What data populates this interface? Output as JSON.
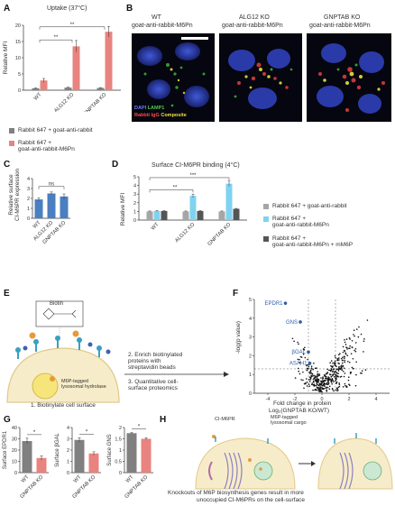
{
  "panels": {
    "A": {
      "label": "A",
      "title": "Uptake (37°C)",
      "ylabel": "Relative MFI",
      "legend": [
        {
          "label": "Rabbit 647 + goat-anti-rabbit",
          "color": "#808080"
        },
        {
          "label": "Rabbit 647 +\ngoat-anti-rabbit-M6Pn",
          "color": "#e8837f"
        }
      ],
      "sig": [
        "**",
        "**"
      ]
    },
    "B": {
      "label": "B",
      "headers": [
        {
          "line1": "WT",
          "line2": "goat-anti-rabbit-M6Pn"
        },
        {
          "line1": "ALG12 KO",
          "line2": "goat-anti-rabbit-M6Pn"
        },
        {
          "line1": "GNPTAB KO",
          "line2": "goat-anti-rabbit-M6Pn"
        }
      ],
      "legend_line1": [
        {
          "text": "DAPI",
          "color": "#6f7cff"
        },
        {
          "text": "LAMP1",
          "color": "#4ccc4c"
        }
      ],
      "legend_line2": [
        {
          "text": "Rabbit IgG",
          "color": "#ff4a4a"
        },
        {
          "text": "Composite",
          "color": "#f0e040"
        }
      ]
    },
    "C": {
      "label": "C",
      "ylabel": "Relative surface\nCI-M6PR expression",
      "sig": "ns"
    },
    "D": {
      "label": "D",
      "title": "Surface CI-M6PR binding (4°C)",
      "ylabel": "Relative MFI",
      "legend": [
        {
          "label": "Rabbit 647 + goat-anti-rabbit",
          "color": "#a6a6a6"
        },
        {
          "label": "Rabbit 647 +\ngoat-anti-rabbit-M6Pn",
          "color": "#7fd3f0"
        },
        {
          "label": "Rabbit 647 +\ngoat-anti-rabbit-M6Pn + mM6P",
          "color": "#555555"
        }
      ],
      "sig": [
        "**",
        "***"
      ]
    },
    "E": {
      "label": "E",
      "biotin_label": "Biotin",
      "cargo_label": "M6P-tagged\nlysosomal hydrolase",
      "step1": "1. Biotinylate cell surface",
      "step2": "2. Enrich biotinylated\nproteins with\nstreptavidin beads",
      "step3": "3. Quantitative cell-\nsurface proteomics"
    },
    "F": {
      "label": "F",
      "ylabel": "-log(p value)",
      "xlabel_line1": "Fold change in protein",
      "xlabel_line2": "Log₂(GNPTAB KO/WT)",
      "highlights": [
        "EPDR1",
        "GNS",
        "βGAL",
        "ASAH1"
      ]
    },
    "G": {
      "label": "G",
      "sig": [
        "*",
        "*",
        "*"
      ]
    },
    "H": {
      "label": "H",
      "receptor_label": "CI-M6PR",
      "cargo_label": "M6P-tagged\nlysosomal cargo",
      "caption_line1": "Knockouts of M6P biosynthesis genes result in more",
      "caption_line2": "unoccupied CI-M6PRs on the cell-surface"
    }
  },
  "chart_data": [
    {
      "id": "A",
      "type": "bar",
      "title": "Uptake (37°C)",
      "ylabel": "Relative MFI",
      "categories": [
        "WT",
        "ALG12 KO",
        "GNPTAB KO"
      ],
      "ylim": [
        0,
        20
      ],
      "yticks": [
        0,
        5,
        10,
        15,
        20
      ],
      "series": [
        {
          "name": "Rabbit 647 + goat-anti-rabbit",
          "color": "#808080",
          "values": [
            0.6,
            0.8,
            0.7
          ],
          "errors": [
            0.1,
            0.1,
            0.1
          ]
        },
        {
          "name": "Rabbit 647 + goat-anti-rabbit-M6Pn",
          "color": "#e8837f",
          "values": [
            3.0,
            13.5,
            18.0
          ],
          "errors": [
            0.6,
            1.8,
            1.6
          ]
        }
      ]
    },
    {
      "id": "C",
      "type": "bar",
      "ylabel": "Relative surface CI-M6PR expression",
      "categories": [
        "WT",
        "ALG12 KO",
        "GNPTAB KO"
      ],
      "ylim": [
        0,
        4
      ],
      "yticks": [
        0,
        1,
        2,
        3,
        4
      ],
      "series": [
        {
          "name": "",
          "color": "#4a7fc1",
          "values": [
            1.9,
            2.5,
            2.2
          ],
          "errors": [
            0.15,
            0.15,
            0.25
          ]
        }
      ]
    },
    {
      "id": "D",
      "type": "bar",
      "title": "Surface CI-M6PR binding (4°C)",
      "ylabel": "Relative MFI",
      "categories": [
        "WT",
        "ALG12 KO",
        "GNPTAB KO"
      ],
      "ylim": [
        0,
        5
      ],
      "yticks": [
        0,
        1,
        2,
        3,
        4,
        5
      ],
      "series": [
        {
          "name": "Rabbit 647 + goat-anti-rabbit",
          "color": "#a6a6a6",
          "values": [
            1.0,
            1.0,
            1.0
          ],
          "errors": [
            0.05,
            0.05,
            0.05
          ]
        },
        {
          "name": "Rabbit 647 + goat-anti-rabbit-M6Pn",
          "color": "#7fd3f0",
          "values": [
            1.05,
            2.8,
            4.2
          ],
          "errors": [
            0.05,
            0.2,
            0.3
          ]
        },
        {
          "name": "Rabbit 647 + goat-anti-rabbit-M6Pn + mM6P",
          "color": "#555555",
          "values": [
            1.05,
            1.05,
            1.3
          ],
          "errors": [
            0.05,
            0.05,
            0.05
          ]
        }
      ]
    },
    {
      "id": "F",
      "type": "scatter",
      "xlabel": "Fold change in protein Log₂(GNPTAB KO/WT)",
      "ylabel": "-log(p value)",
      "xlim": [
        -5,
        5
      ],
      "ylim": [
        0,
        5
      ],
      "xticks": [
        -4,
        -2,
        0,
        2,
        4
      ],
      "yticks": [
        0,
        1,
        2,
        3,
        4,
        5
      ],
      "threshold_y": 1.3,
      "highlights": [
        {
          "name": "EPDR1",
          "x": -2.7,
          "y": 4.8
        },
        {
          "name": "GNS",
          "x": -1.6,
          "y": 3.8
        },
        {
          "name": "βGAL",
          "x": -1.0,
          "y": 2.2
        },
        {
          "name": "ASAH1",
          "x": -0.9,
          "y": 1.6
        }
      ]
    },
    {
      "id": "G1",
      "type": "bar",
      "ylabel": "Surface EPDR1",
      "categories": [
        "WT",
        "GNPTAB KO"
      ],
      "ylim": [
        0,
        40
      ],
      "yticks": [
        0,
        10,
        20,
        30,
        40
      ],
      "series": [
        {
          "name": "",
          "colors": [
            "#808080",
            "#e8837f"
          ],
          "values": [
            28,
            13
          ],
          "errors": [
            2.5,
            2.0
          ]
        }
      ]
    },
    {
      "id": "G2",
      "type": "bar",
      "ylabel": "Surface βGAL",
      "categories": [
        "WT",
        "GNPTAB KO"
      ],
      "ylim": [
        0,
        4
      ],
      "yticks": [
        0,
        1,
        2,
        3,
        4
      ],
      "series": [
        {
          "name": "",
          "colors": [
            "#808080",
            "#e8837f"
          ],
          "values": [
            2.9,
            1.7
          ],
          "errors": [
            0.2,
            0.15
          ]
        }
      ]
    },
    {
      "id": "G3",
      "type": "bar",
      "ylabel": "Surface GNS",
      "categories": [
        "WT",
        "GNPTAB KO"
      ],
      "ylim": [
        0,
        2.0
      ],
      "yticks": [
        0,
        0.5,
        1.0,
        1.5,
        2.0
      ],
      "series": [
        {
          "name": "",
          "colors": [
            "#808080",
            "#e8837f"
          ],
          "values": [
            1.75,
            1.5
          ],
          "errors": [
            0.03,
            0.05
          ]
        }
      ]
    }
  ]
}
